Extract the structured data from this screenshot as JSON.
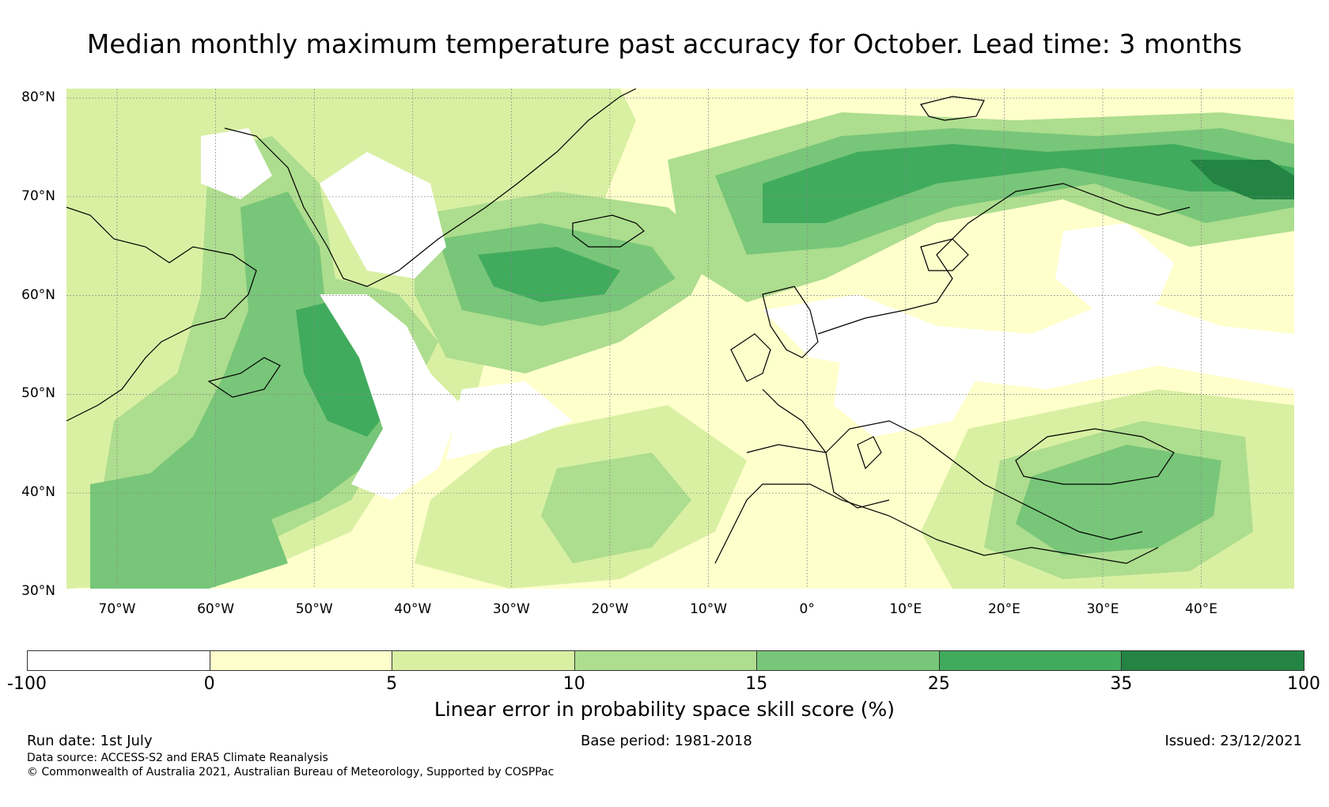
{
  "title": "Median monthly maximum temperature past accuracy for October. Lead time: 3 months",
  "map": {
    "lat_labels": [
      "80°N",
      "70°N",
      "60°N",
      "50°N",
      "40°N",
      "30°N"
    ],
    "lon_labels": [
      "70°W",
      "60°W",
      "50°W",
      "40°W",
      "30°W",
      "20°W",
      "10°W",
      "0°",
      "10°E",
      "20°E",
      "30°E",
      "40°E"
    ]
  },
  "colorbar": {
    "title": "Linear error in probability space skill score (%)",
    "ticks": [
      "-100",
      "0",
      "5",
      "10",
      "15",
      "25",
      "35",
      "100"
    ],
    "colors": [
      "#ffffff",
      "#ffffcc",
      "#d9f0a3",
      "#addd8e",
      "#78c679",
      "#41ab5d",
      "#238443"
    ]
  },
  "footer": {
    "run_date": "Run date: 1st July",
    "base_period": "Base period: 1981-2018",
    "issued": "Issued: 23/12/2021",
    "data_source": "Data source: ACCESS-S2 and ERA5 Climate Reanalysis",
    "copyright": "© Commonwealth of Australia 2021, Australian Bureau of Meteorology, Supported by COSPPac"
  }
}
